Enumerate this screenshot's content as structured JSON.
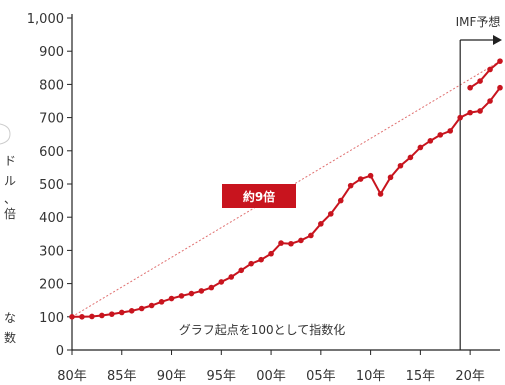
{
  "chart_data": {
    "type": "line",
    "title": "",
    "xlabel": "",
    "ylabel": "",
    "ylim": [
      0,
      1000
    ],
    "y_ticks": [
      0,
      100,
      200,
      300,
      400,
      500,
      600,
      700,
      800,
      900,
      1000
    ],
    "y_tick_labels": [
      "0",
      "100",
      "200",
      "300",
      "400",
      "500",
      "600",
      "700",
      "800",
      "900",
      "1,000"
    ],
    "x_ticks": [
      1980,
      1985,
      1990,
      1995,
      2000,
      2005,
      2010,
      2015,
      2020
    ],
    "x_tick_labels": [
      "80年",
      "85年",
      "90年",
      "95年",
      "00年",
      "05年",
      "10年",
      "15年",
      "20年"
    ],
    "xlim": [
      1980,
      2023
    ],
    "series": [
      {
        "color": "#c8141e",
        "x": [
          1980,
          1981,
          1982,
          1983,
          1984,
          1985,
          1986,
          1987,
          1988,
          1989,
          1990,
          1991,
          1992,
          1993,
          1994,
          1995,
          1996,
          1997,
          1998,
          1999,
          2000,
          2001,
          2002,
          2003,
          2004,
          2005,
          2006,
          2007,
          2008,
          2009,
          2010,
          2011,
          2012,
          2013,
          2014,
          2015,
          2016,
          2017,
          2018,
          2019,
          2020,
          2021,
          2022,
          2023
        ],
        "y": [
          100,
          100,
          101,
          104,
          108,
          113,
          118,
          125,
          134,
          145,
          155,
          163,
          170,
          178,
          188,
          205,
          220,
          240,
          260,
          272,
          290,
          322,
          320,
          330,
          345,
          380,
          410,
          450,
          495,
          515,
          525,
          470,
          520,
          555,
          580,
          610,
          630,
          648,
          660,
          700,
          715,
          720,
          750,
          790
        ]
      },
      {
        "color": "#c8141e",
        "x": [
          2020,
          2021,
          2022,
          2023
        ],
        "y": [
          790,
          810,
          845,
          870
        ]
      }
    ],
    "trend_line": {
      "x": [
        1980,
        2023
      ],
      "y": [
        100,
        870
      ],
      "color": "#e07070"
    },
    "forecast_start": 2019,
    "annotations": {
      "forecast_label": "IMF予想",
      "ratio_label": "約9倍",
      "note": "グラフ起点を100として指数化"
    },
    "grid": false
  },
  "left_fragments": [
    "ド",
    "ル",
    "、",
    "倍",
    "な",
    "数"
  ]
}
